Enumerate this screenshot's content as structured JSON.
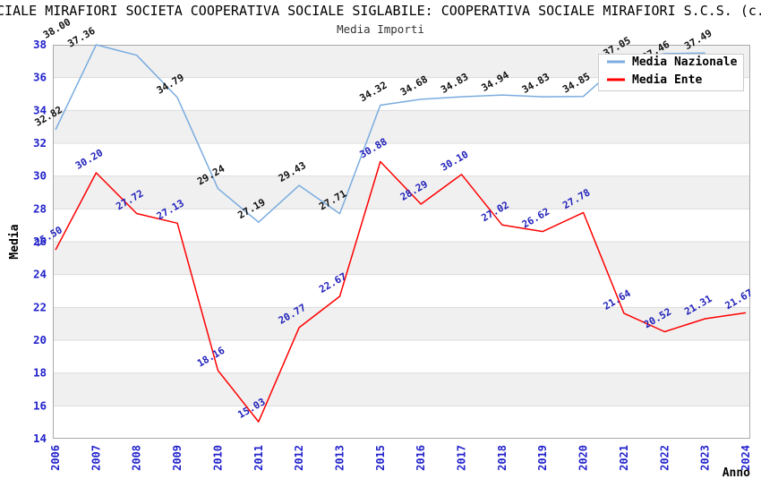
{
  "title": "CIALE MIRAFIORI SOCIETA COOPERATIVA SOCIALE SIGLABILE: COOPERATIVA SOCIALE MIRAFIORI S.C.S. (c.",
  "subtitle": "Media Importi",
  "chart_data": {
    "type": "line",
    "title": "Media Importi",
    "xlabel": "Anno",
    "ylabel": "Media",
    "ylim": [
      14,
      38
    ],
    "ytick_step": 2,
    "grid": "horizontal-bands",
    "legend_position": "top-right",
    "categories": [
      "2006",
      "2007",
      "2008",
      "2009",
      "2010",
      "2011",
      "2012",
      "2013",
      "2015",
      "2016",
      "2017",
      "2018",
      "2019",
      "2020",
      "2021",
      "2022",
      "2023",
      "2024"
    ],
    "series": [
      {
        "name": "Media Nazionale",
        "color": "#7AACDF",
        "label_color": "#111111",
        "values": [
          32.82,
          38.0,
          37.36,
          34.79,
          29.24,
          27.19,
          29.43,
          27.71,
          34.32,
          34.68,
          34.83,
          34.94,
          34.83,
          34.85,
          37.05,
          37.46,
          37.49,
          null
        ],
        "label_offsets": {
          "1": [
            -36,
            -3
          ],
          "2": [
            -54,
            -5
          ],
          "15": [
            -2,
            12
          ]
        }
      },
      {
        "name": "Media Ente",
        "color": "#FF0000",
        "label_color": "#2222BB",
        "values": [
          25.5,
          30.2,
          27.72,
          27.13,
          18.16,
          15.03,
          20.77,
          22.67,
          30.88,
          28.29,
          30.1,
          27.02,
          26.62,
          27.78,
          21.64,
          20.52,
          21.31,
          21.67
        ],
        "label_offsets": {}
      }
    ],
    "style": {
      "tick_color": "#2222CC",
      "axis_title_color": "#000000",
      "band_color": "#F0F0F0",
      "grid_color": "#DCDCDC",
      "border_color": "#AAAAAA",
      "legend_bg": "#FFFFFF",
      "legend_border": "#CCCCCC"
    }
  }
}
